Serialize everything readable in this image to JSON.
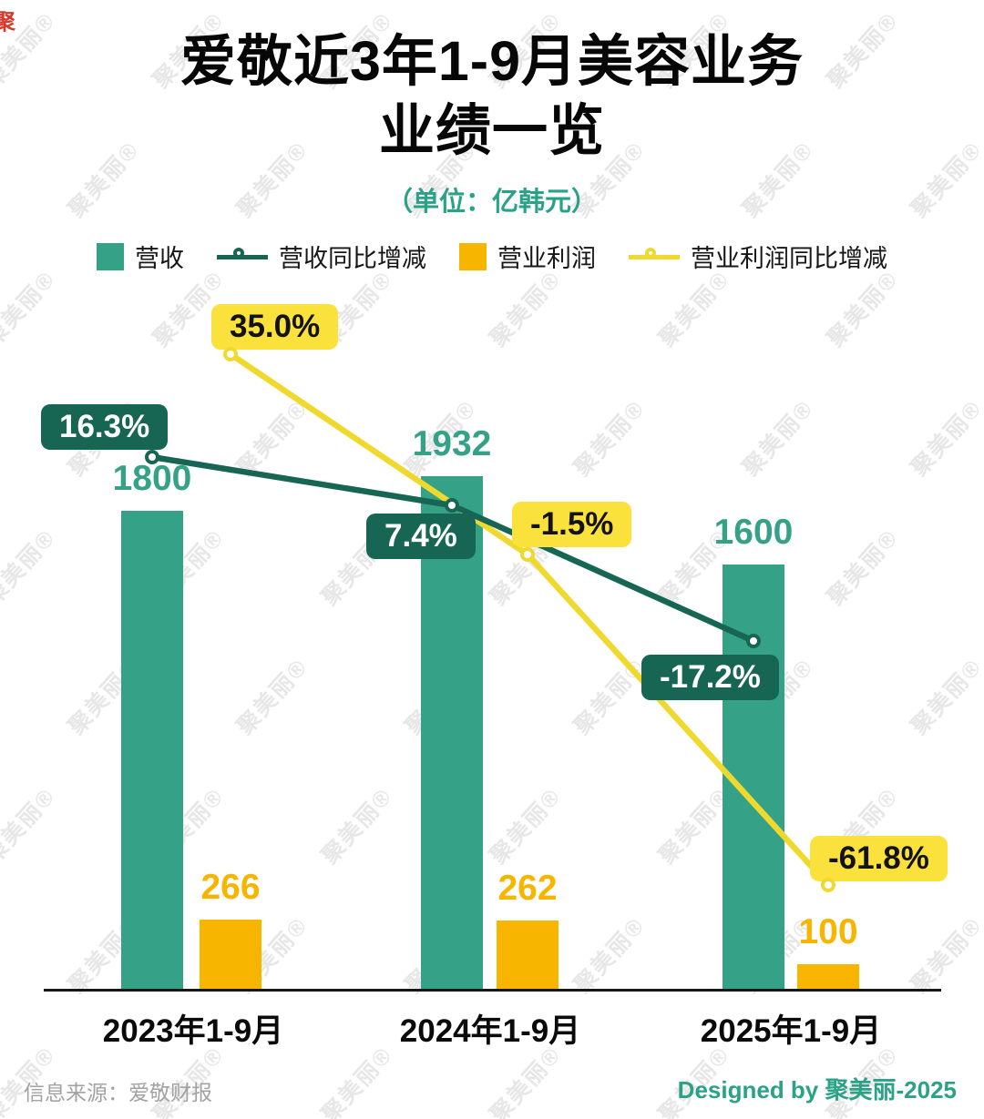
{
  "watermark": {
    "text": "聚美丽®",
    "corner": "聚"
  },
  "title": {
    "line1": "爱敬近3年1-9月美容业务",
    "line2": "业绩一览",
    "subtitle": "（单位：亿韩元）"
  },
  "legend": [
    {
      "label": "营收",
      "type": "bar",
      "color": "#35a287"
    },
    {
      "label": "营收同比增减",
      "type": "line",
      "color": "#176653"
    },
    {
      "label": "营业利润",
      "type": "bar",
      "color": "#f8b500"
    },
    {
      "label": "营业利润同比增减",
      "type": "line",
      "color": "#f0d92f"
    }
  ],
  "chart_data": {
    "type": "bar+line",
    "title": "爱敬近3年1-9月美容业务业绩一览",
    "unit": "亿韩元",
    "categories": [
      "2023年1-9月",
      "2024年1-9月",
      "2025年1-9月"
    ],
    "series": [
      {
        "name": "营收",
        "type": "bar",
        "color": "#35a287",
        "values": [
          1800,
          1932,
          1600
        ],
        "labels": [
          "1800",
          "1932",
          "1600"
        ]
      },
      {
        "name": "营业利润",
        "type": "bar",
        "color": "#f8b500",
        "values": [
          266,
          262,
          100
        ],
        "labels": [
          "266",
          "262",
          "100"
        ]
      },
      {
        "name": "营收同比增减",
        "type": "line",
        "unit": "%",
        "color": "#176653",
        "label_bg": "#176653",
        "label_text_color": "#ffffff",
        "values": [
          16.3,
          7.4,
          -17.2
        ],
        "labels": [
          "16.3%",
          "7.4%",
          "-17.2%"
        ]
      },
      {
        "name": "营业利润同比增减",
        "type": "line",
        "unit": "%",
        "color": "#f0d92f",
        "label_bg": "#fae13c",
        "label_text_color": "#131313",
        "values": [
          35.0,
          -1.5,
          -61.8
        ],
        "labels": [
          "35.0%",
          "-1.5%",
          "-61.8%"
        ]
      }
    ],
    "legend_position": "top",
    "grid": false
  },
  "footer": {
    "source": "信息来源：爱敬财报",
    "credit": "Designed by 聚美丽-2025"
  }
}
